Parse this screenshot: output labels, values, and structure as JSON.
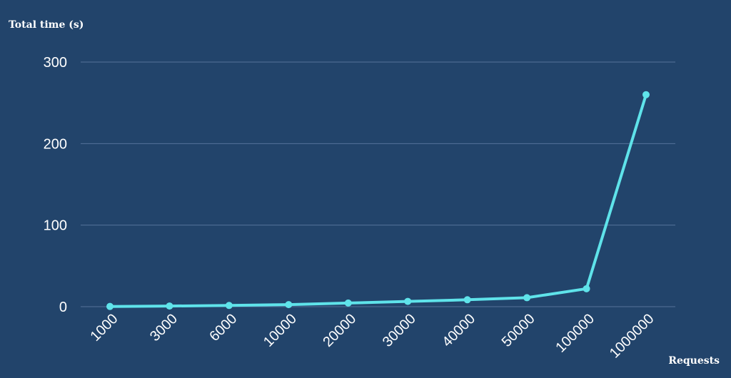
{
  "chart_data": {
    "type": "line",
    "ylabel": "Total time (s)",
    "xlabel": "Requests",
    "categories": [
      "1000",
      "3000",
      "6000",
      "10000",
      "20000",
      "30000",
      "40000",
      "50000",
      "100000",
      "1000000"
    ],
    "series": [
      {
        "values": [
          0.3,
          0.8,
          1.5,
          2.5,
          4.5,
          6.5,
          8.5,
          11,
          22,
          260
        ]
      }
    ],
    "ylim": [
      0,
      300
    ],
    "yticks": [
      0,
      100,
      200,
      300
    ],
    "grid": true,
    "legend": "none",
    "colors": {
      "background": "#22446b",
      "line": "#5fe3ea",
      "grid": "#55729a",
      "text": "#ffffff"
    }
  }
}
